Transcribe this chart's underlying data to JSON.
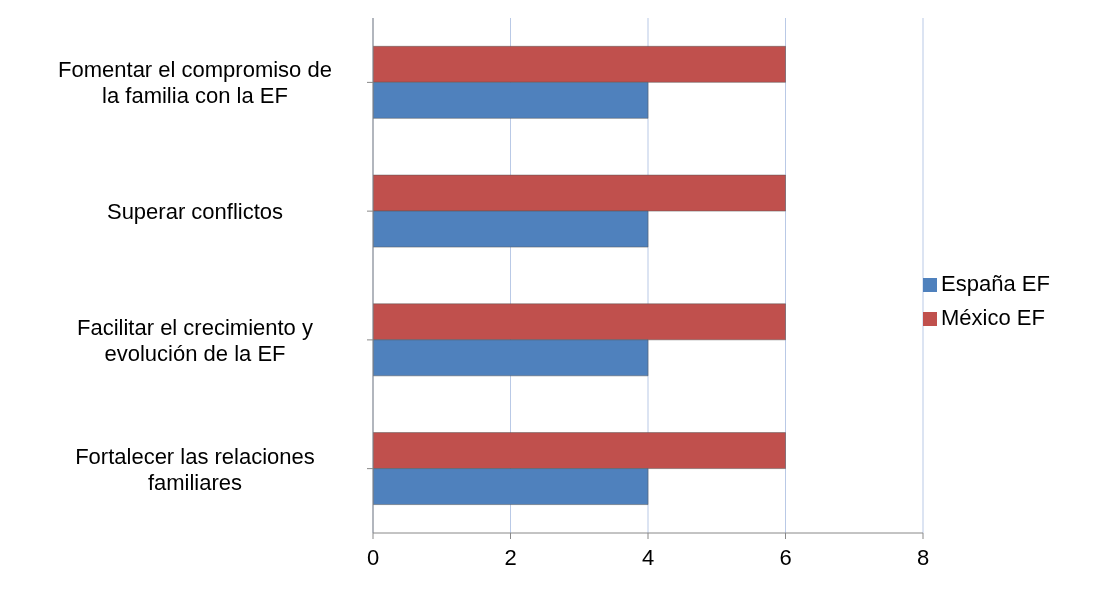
{
  "chart_data": {
    "type": "bar",
    "orientation": "horizontal",
    "categories": [
      "Fomentar  el compromiso de la familia con la EF",
      "Superar conflictos",
      "Facilitar el crecimiento y evolución de la EF",
      "Fortalecer las relaciones familiares"
    ],
    "series": [
      {
        "name": "México EF",
        "color": "#c0504d",
        "values": [
          6,
          6,
          6,
          6
        ]
      },
      {
        "name": "España EF",
        "color": "#4f81bd",
        "values": [
          4,
          4,
          4,
          4
        ]
      }
    ],
    "xlim": [
      0,
      8
    ],
    "xticks": [
      0,
      2,
      4,
      6,
      8
    ],
    "grid": "x",
    "legend": "right"
  }
}
